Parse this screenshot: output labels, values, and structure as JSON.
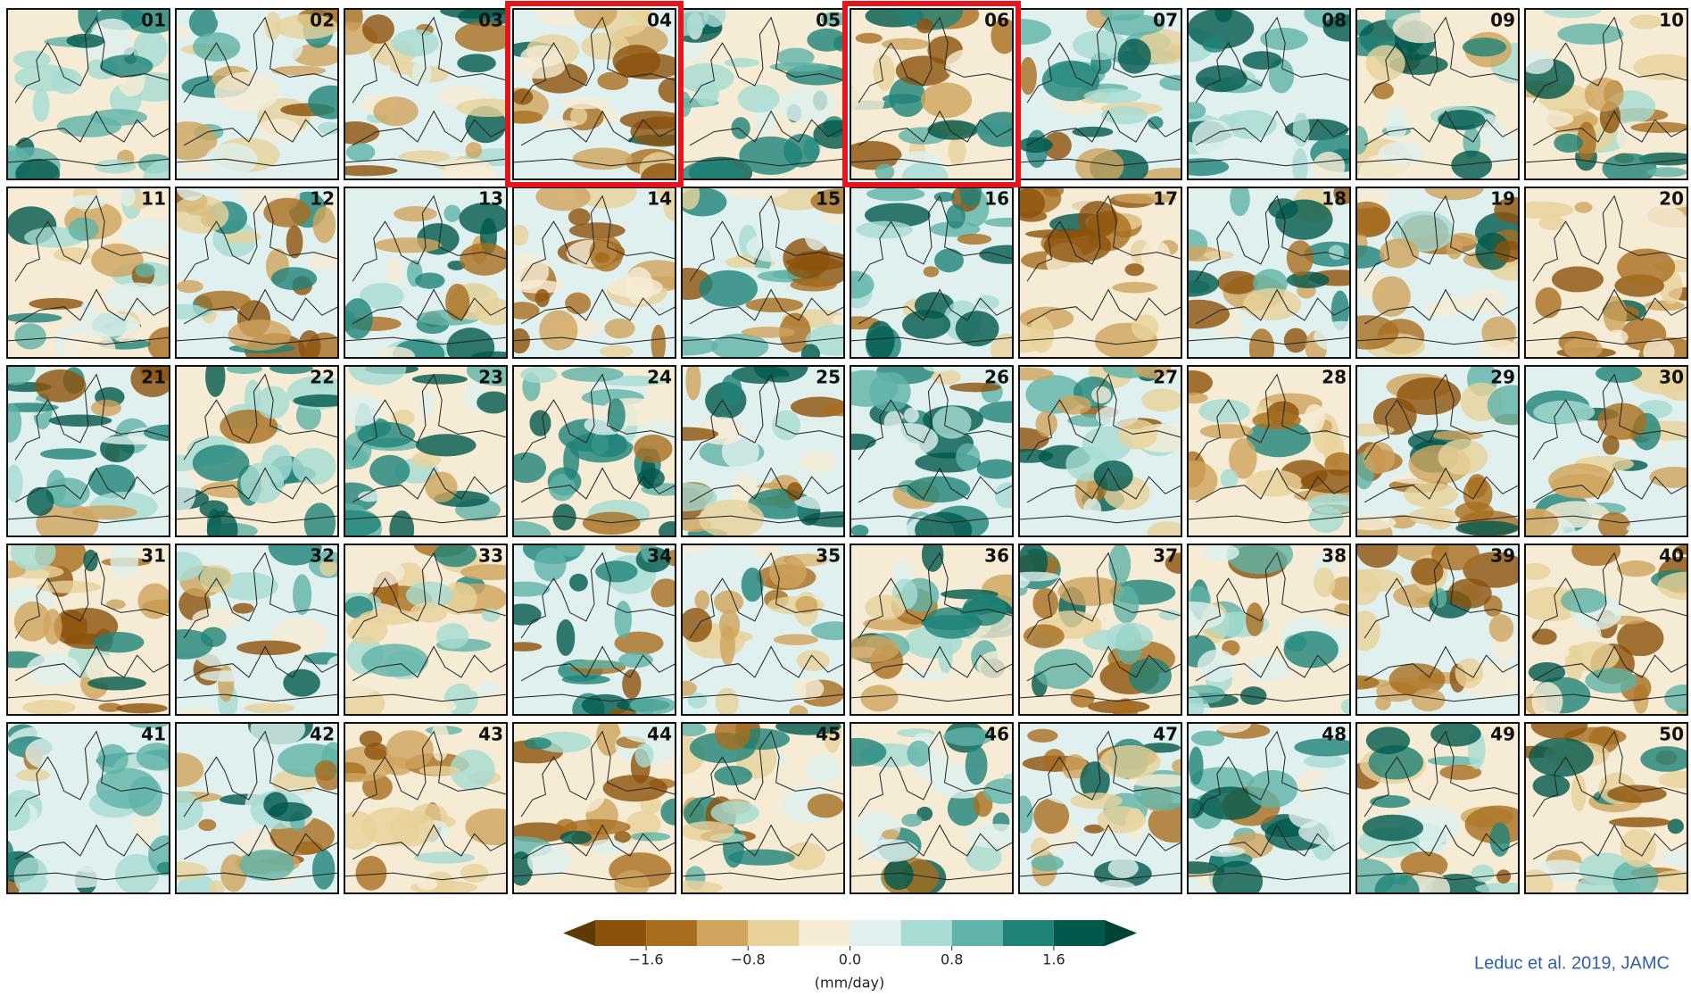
{
  "panels": {
    "labels": [
      "01",
      "02",
      "03",
      "04",
      "05",
      "06",
      "07",
      "08",
      "09",
      "10",
      "11",
      "12",
      "13",
      "14",
      "15",
      "16",
      "17",
      "18",
      "19",
      "20",
      "21",
      "22",
      "23",
      "24",
      "25",
      "26",
      "27",
      "28",
      "29",
      "30",
      "31",
      "32",
      "33",
      "34",
      "35",
      "36",
      "37",
      "38",
      "39",
      "40",
      "41",
      "42",
      "43",
      "44",
      "45",
      "46",
      "47",
      "48",
      "49",
      "50"
    ],
    "highlighted": [
      3,
      5
    ]
  },
  "colorbar": {
    "lim": [
      -2,
      2
    ],
    "bounds": [
      -2,
      -1.6,
      -1.2,
      -0.8,
      -0.4,
      0,
      0.4,
      0.8,
      1.2,
      1.6,
      2
    ],
    "colors": [
      "#8c510a",
      "#a86e1e",
      "#cfa45c",
      "#e8d29a",
      "#f6ecd6",
      "#dff0ee",
      "#a6dcd3",
      "#5fb3a8",
      "#1f8378",
      "#01594c"
    ],
    "extend_colors": [
      "#5e3a06",
      "#014437"
    ],
    "ticks": [
      {
        "value": -1.6,
        "label": "−1.6"
      },
      {
        "value": -0.8,
        "label": "−0.8"
      },
      {
        "value": 0,
        "label": "0.0"
      },
      0.8,
      1.6
    ],
    "label": "(mm/day)"
  },
  "citation": "Leduc et al. 2019, JAMC"
}
